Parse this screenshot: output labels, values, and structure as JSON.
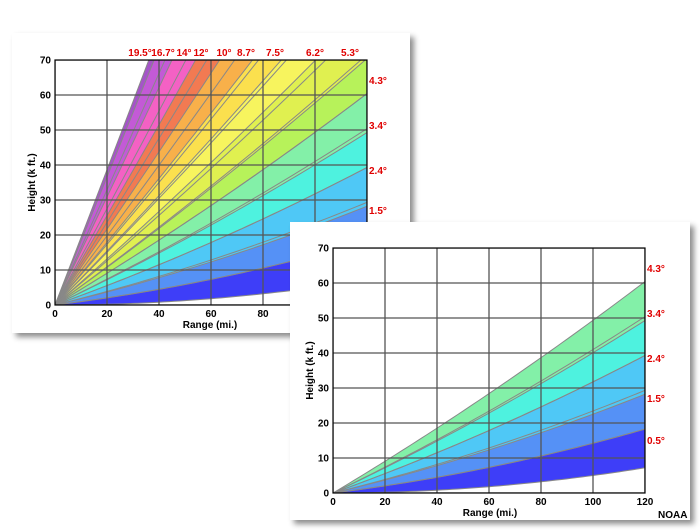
{
  "colors": {
    "angle_label": "#e00000",
    "band_fill": [
      "#3e3ef8",
      "#5591f6",
      "#4fc8f6",
      "#4ef2df",
      "#83f0a8",
      "#b7f25a",
      "#e0f050",
      "#f7f45e",
      "#fbe04e",
      "#f8b04a",
      "#f27a52",
      "#f461c4",
      "#c35ad6",
      "#a554c8"
    ],
    "grid": "#555555",
    "beam_edge": "#888888"
  },
  "chart_data": [
    {
      "type": "area",
      "title": "",
      "xlabel": "Range (mi.)",
      "ylabel": "Height (k ft.)",
      "xlim": [
        0,
        120
      ],
      "ylim": [
        0,
        70
      ],
      "x_ticks": [
        "0",
        "20",
        "40",
        "60",
        "80"
      ],
      "y_ticks": [
        "0",
        "10",
        "20",
        "30",
        "40",
        "50",
        "60",
        "70"
      ],
      "grid": true,
      "series": [
        {
          "name": "0.5°",
          "elevation_deg": 0.5
        },
        {
          "name": "1.5°",
          "elevation_deg": 1.5
        },
        {
          "name": "2.4°",
          "elevation_deg": 2.4
        },
        {
          "name": "3.4°",
          "elevation_deg": 3.4
        },
        {
          "name": "4.3°",
          "elevation_deg": 4.3
        },
        {
          "name": "5.3°",
          "elevation_deg": 5.3
        },
        {
          "name": "6.2°",
          "elevation_deg": 6.2
        },
        {
          "name": "7.5°",
          "elevation_deg": 7.5
        },
        {
          "name": "8.7°",
          "elevation_deg": 8.7
        },
        {
          "name": "10°",
          "elevation_deg": 10.0
        },
        {
          "name": "12°",
          "elevation_deg": 12.0
        },
        {
          "name": "14°",
          "elevation_deg": 14.0
        },
        {
          "name": "16.7°",
          "elevation_deg": 16.7
        },
        {
          "name": "19.5°",
          "elevation_deg": 19.5
        }
      ],
      "right_labels": [
        "4.3°",
        "3.4°",
        "2.4°",
        "1.5°"
      ],
      "top_labels": [
        "19.5°",
        "16.7°",
        "14°",
        "12°",
        "10°",
        "8.7°",
        "7.5°",
        "6.2°",
        "5.3°"
      ],
      "beam_width_deg": 1.0
    },
    {
      "type": "area",
      "title": "",
      "xlabel": "Range (mi.)",
      "ylabel": "Height (k ft.)",
      "xlim": [
        0,
        120
      ],
      "ylim": [
        0,
        70
      ],
      "x_ticks": [
        "0",
        "20",
        "40",
        "60",
        "80",
        "100",
        "120"
      ],
      "y_ticks": [
        "0",
        "10",
        "20",
        "30",
        "40",
        "50",
        "60",
        "70"
      ],
      "grid": true,
      "series": [
        {
          "name": "0.5°",
          "elevation_deg": 0.5
        },
        {
          "name": "1.5°",
          "elevation_deg": 1.5
        },
        {
          "name": "2.4°",
          "elevation_deg": 2.4
        },
        {
          "name": "3.4°",
          "elevation_deg": 3.4
        },
        {
          "name": "4.3°",
          "elevation_deg": 4.3
        }
      ],
      "right_labels": [
        "4.3°",
        "3.4°",
        "2.4°",
        "1.5°",
        "0.5°"
      ],
      "beam_width_deg": 1.0,
      "credit": "NOAA"
    }
  ]
}
